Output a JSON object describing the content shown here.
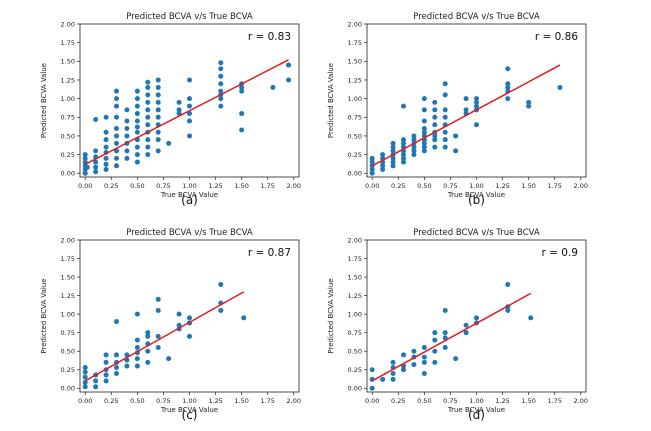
{
  "chart_data": [
    {
      "type": "scatter",
      "panel_label": "(a)",
      "title": "Predicted BCVA v/s True BCVA",
      "xlabel": "True BCVA Value",
      "ylabel": "Predicted BCVA Value",
      "xlim": [
        -0.05,
        2.05
      ],
      "ylim": [
        -0.05,
        2.0
      ],
      "xticks": [
        "0.00",
        "0.25",
        "0.50",
        "0.75",
        "1.00",
        "1.25",
        "1.50",
        "1.75",
        "2.00"
      ],
      "yticks": [
        "0.00",
        "0.25",
        "0.50",
        "0.75",
        "1.00",
        "1.25",
        "1.50",
        "1.75",
        "2.00"
      ],
      "annotation": "r = 0.83",
      "point_color": "#1f77b4",
      "line_color": "#e31a1c",
      "fit_line": {
        "x": [
          0.0,
          1.95
        ],
        "y": [
          0.12,
          1.52
        ]
      },
      "points": [
        [
          0.0,
          0.0
        ],
        [
          0.0,
          0.05
        ],
        [
          0.0,
          0.1
        ],
        [
          0.0,
          0.15
        ],
        [
          0.0,
          0.2
        ],
        [
          0.0,
          0.25
        ],
        [
          0.0,
          0.0
        ],
        [
          0.02,
          0.08
        ],
        [
          0.1,
          0.02
        ],
        [
          0.1,
          0.08
        ],
        [
          0.1,
          0.15
        ],
        [
          0.1,
          0.22
        ],
        [
          0.1,
          0.3
        ],
        [
          0.1,
          0.72
        ],
        [
          0.2,
          0.05
        ],
        [
          0.2,
          0.12
        ],
        [
          0.2,
          0.2
        ],
        [
          0.2,
          0.28
        ],
        [
          0.2,
          0.35
        ],
        [
          0.2,
          0.45
        ],
        [
          0.2,
          0.55
        ],
        [
          0.2,
          0.75
        ],
        [
          0.3,
          0.1
        ],
        [
          0.3,
          0.2
        ],
        [
          0.3,
          0.3
        ],
        [
          0.3,
          0.4
        ],
        [
          0.3,
          0.5
        ],
        [
          0.3,
          0.6
        ],
        [
          0.3,
          0.75
        ],
        [
          0.3,
          0.9
        ],
        [
          0.3,
          1.0
        ],
        [
          0.3,
          1.1
        ],
        [
          0.4,
          0.2
        ],
        [
          0.4,
          0.3
        ],
        [
          0.4,
          0.4
        ],
        [
          0.4,
          0.5
        ],
        [
          0.4,
          0.6
        ],
        [
          0.4,
          0.7
        ],
        [
          0.4,
          0.85
        ],
        [
          0.5,
          0.15
        ],
        [
          0.5,
          0.25
        ],
        [
          0.5,
          0.35
        ],
        [
          0.5,
          0.45
        ],
        [
          0.5,
          0.55
        ],
        [
          0.5,
          0.62
        ],
        [
          0.5,
          0.7
        ],
        [
          0.5,
          0.8
        ],
        [
          0.5,
          0.9
        ],
        [
          0.5,
          1.0
        ],
        [
          0.5,
          1.1
        ],
        [
          0.6,
          0.25
        ],
        [
          0.6,
          0.35
        ],
        [
          0.6,
          0.45
        ],
        [
          0.6,
          0.55
        ],
        [
          0.6,
          0.65
        ],
        [
          0.6,
          0.75
        ],
        [
          0.6,
          0.85
        ],
        [
          0.6,
          0.95
        ],
        [
          0.6,
          1.05
        ],
        [
          0.6,
          1.15
        ],
        [
          0.6,
          1.22
        ],
        [
          0.7,
          0.3
        ],
        [
          0.7,
          0.45
        ],
        [
          0.7,
          0.55
        ],
        [
          0.7,
          0.65
        ],
        [
          0.7,
          0.75
        ],
        [
          0.7,
          0.85
        ],
        [
          0.7,
          0.95
        ],
        [
          0.7,
          1.05
        ],
        [
          0.7,
          1.15
        ],
        [
          0.7,
          1.25
        ],
        [
          0.8,
          0.4
        ],
        [
          0.9,
          0.8
        ],
        [
          0.9,
          0.85
        ],
        [
          0.9,
          0.95
        ],
        [
          1.0,
          0.5
        ],
        [
          1.0,
          0.7
        ],
        [
          1.0,
          0.8
        ],
        [
          1.0,
          0.9
        ],
        [
          1.0,
          1.0
        ],
        [
          1.0,
          1.25
        ],
        [
          1.3,
          0.9
        ],
        [
          1.3,
          1.0
        ],
        [
          1.3,
          1.05
        ],
        [
          1.3,
          1.1
        ],
        [
          1.3,
          1.2
        ],
        [
          1.3,
          1.3
        ],
        [
          1.3,
          1.4
        ],
        [
          1.3,
          1.48
        ],
        [
          1.5,
          0.58
        ],
        [
          1.5,
          0.8
        ],
        [
          1.5,
          1.1
        ],
        [
          1.5,
          1.15
        ],
        [
          1.5,
          1.2
        ],
        [
          1.8,
          1.15
        ],
        [
          1.95,
          1.25
        ],
        [
          1.95,
          1.45
        ]
      ]
    },
    {
      "type": "scatter",
      "panel_label": "(b)",
      "title": "Predicted BCVA v/s True BCVA",
      "xlabel": "True BCVA Value",
      "ylabel": "Predicted BCVA Value",
      "xlim": [
        -0.05,
        2.05
      ],
      "ylim": [
        -0.05,
        2.0
      ],
      "xticks": [
        "0.00",
        "0.25",
        "0.50",
        "0.75",
        "1.00",
        "1.25",
        "1.50",
        "1.75",
        "2.00"
      ],
      "yticks": [
        "0.00",
        "0.25",
        "0.50",
        "0.75",
        "1.00",
        "1.25",
        "1.50",
        "1.75",
        "2.00"
      ],
      "annotation": "r = 0.86",
      "point_color": "#1f77b4",
      "line_color": "#e31a1c",
      "fit_line": {
        "x": [
          0.0,
          1.8
        ],
        "y": [
          0.1,
          1.45
        ]
      },
      "points": [
        [
          0.0,
          0.0
        ],
        [
          0.0,
          0.05
        ],
        [
          0.0,
          0.1
        ],
        [
          0.0,
          0.15
        ],
        [
          0.0,
          0.2
        ],
        [
          0.1,
          0.05
        ],
        [
          0.1,
          0.1
        ],
        [
          0.1,
          0.15
        ],
        [
          0.1,
          0.2
        ],
        [
          0.1,
          0.25
        ],
        [
          0.2,
          0.1
        ],
        [
          0.2,
          0.15
        ],
        [
          0.2,
          0.2
        ],
        [
          0.2,
          0.25
        ],
        [
          0.2,
          0.3
        ],
        [
          0.2,
          0.35
        ],
        [
          0.2,
          0.4
        ],
        [
          0.3,
          0.15
        ],
        [
          0.3,
          0.2
        ],
        [
          0.3,
          0.25
        ],
        [
          0.3,
          0.3
        ],
        [
          0.3,
          0.35
        ],
        [
          0.3,
          0.4
        ],
        [
          0.3,
          0.45
        ],
        [
          0.3,
          0.9
        ],
        [
          0.4,
          0.25
        ],
        [
          0.4,
          0.3
        ],
        [
          0.4,
          0.35
        ],
        [
          0.4,
          0.4
        ],
        [
          0.4,
          0.45
        ],
        [
          0.4,
          0.5
        ],
        [
          0.5,
          0.3
        ],
        [
          0.5,
          0.35
        ],
        [
          0.5,
          0.4
        ],
        [
          0.5,
          0.45
        ],
        [
          0.5,
          0.5
        ],
        [
          0.5,
          0.55
        ],
        [
          0.5,
          0.6
        ],
        [
          0.5,
          0.7
        ],
        [
          0.5,
          0.85
        ],
        [
          0.5,
          1.0
        ],
        [
          0.6,
          0.35
        ],
        [
          0.6,
          0.45
        ],
        [
          0.6,
          0.5
        ],
        [
          0.6,
          0.55
        ],
        [
          0.6,
          0.65
        ],
        [
          0.6,
          0.75
        ],
        [
          0.6,
          0.85
        ],
        [
          0.6,
          0.95
        ],
        [
          0.7,
          0.35
        ],
        [
          0.7,
          0.45
        ],
        [
          0.7,
          0.55
        ],
        [
          0.7,
          0.65
        ],
        [
          0.7,
          0.75
        ],
        [
          0.7,
          0.85
        ],
        [
          0.7,
          1.05
        ],
        [
          0.7,
          1.2
        ],
        [
          0.8,
          0.3
        ],
        [
          0.8,
          0.5
        ],
        [
          0.9,
          0.8
        ],
        [
          0.9,
          0.85
        ],
        [
          0.9,
          1.0
        ],
        [
          1.0,
          0.65
        ],
        [
          1.0,
          0.85
        ],
        [
          1.0,
          0.9
        ],
        [
          1.0,
          0.95
        ],
        [
          1.0,
          1.0
        ],
        [
          1.3,
          1.0
        ],
        [
          1.3,
          1.1
        ],
        [
          1.3,
          1.15
        ],
        [
          1.3,
          1.2
        ],
        [
          1.3,
          1.4
        ],
        [
          1.5,
          0.9
        ],
        [
          1.5,
          0.95
        ],
        [
          1.8,
          1.15
        ]
      ]
    },
    {
      "type": "scatter",
      "panel_label": "(c)",
      "title": "Predicted BCVA v/s True BCVA",
      "xlabel": "True BCVA Value",
      "ylabel": "Predicted BCVA Value",
      "xlim": [
        -0.05,
        2.05
      ],
      "ylim": [
        -0.05,
        2.0
      ],
      "xticks": [
        "0.00",
        "0.25",
        "0.50",
        "0.75",
        "1.00",
        "1.25",
        "1.50",
        "1.75",
        "2.00"
      ],
      "yticks": [
        "0.00",
        "0.25",
        "0.50",
        "0.75",
        "1.00",
        "1.25",
        "1.50",
        "1.75",
        "2.00"
      ],
      "annotation": "r = 0.87",
      "point_color": "#1f77b4",
      "line_color": "#e31a1c",
      "fit_line": {
        "x": [
          0.0,
          1.52
        ],
        "y": [
          0.1,
          1.3
        ]
      },
      "points": [
        [
          0.0,
          0.02
        ],
        [
          0.0,
          0.08
        ],
        [
          0.0,
          0.15
        ],
        [
          0.0,
          0.22
        ],
        [
          0.0,
          0.28
        ],
        [
          0.1,
          0.02
        ],
        [
          0.1,
          0.1
        ],
        [
          0.1,
          0.18
        ],
        [
          0.2,
          0.1
        ],
        [
          0.2,
          0.18
        ],
        [
          0.2,
          0.25
        ],
        [
          0.2,
          0.35
        ],
        [
          0.2,
          0.45
        ],
        [
          0.3,
          0.2
        ],
        [
          0.3,
          0.28
        ],
        [
          0.3,
          0.35
        ],
        [
          0.3,
          0.45
        ],
        [
          0.3,
          0.9
        ],
        [
          0.4,
          0.3
        ],
        [
          0.4,
          0.38
        ],
        [
          0.4,
          0.45
        ],
        [
          0.5,
          0.3
        ],
        [
          0.5,
          0.4
        ],
        [
          0.5,
          0.48
        ],
        [
          0.5,
          0.55
        ],
        [
          0.5,
          0.65
        ],
        [
          0.5,
          1.0
        ],
        [
          0.6,
          0.35
        ],
        [
          0.6,
          0.5
        ],
        [
          0.6,
          0.6
        ],
        [
          0.6,
          0.7
        ],
        [
          0.6,
          0.75
        ],
        [
          0.7,
          0.55
        ],
        [
          0.7,
          0.7
        ],
        [
          0.7,
          1.05
        ],
        [
          0.7,
          1.2
        ],
        [
          0.8,
          0.4
        ],
        [
          0.9,
          0.8
        ],
        [
          0.9,
          0.85
        ],
        [
          0.9,
          1.0
        ],
        [
          1.0,
          0.7
        ],
        [
          1.0,
          0.88
        ],
        [
          1.0,
          0.95
        ],
        [
          1.3,
          1.05
        ],
        [
          1.3,
          1.15
        ],
        [
          1.3,
          1.4
        ],
        [
          1.52,
          0.95
        ]
      ]
    },
    {
      "type": "scatter",
      "panel_label": "(d)",
      "title": "Predicted BCVA v/s True BCVA",
      "xlabel": "True BCVA Value",
      "ylabel": "Predicted BCVA Value",
      "xlim": [
        -0.05,
        2.05
      ],
      "ylim": [
        -0.05,
        2.0
      ],
      "xticks": [
        "0.00",
        "0.25",
        "0.50",
        "0.75",
        "1.00",
        "1.25",
        "1.50",
        "1.75",
        "2.00"
      ],
      "yticks": [
        "0.00",
        "0.25",
        "0.50",
        "0.75",
        "1.00",
        "1.25",
        "1.50",
        "1.75",
        "2.00"
      ],
      "annotation": "r = 0.9",
      "point_color": "#1f77b4",
      "line_color": "#e31a1c",
      "fit_line": {
        "x": [
          0.0,
          1.52
        ],
        "y": [
          0.1,
          1.28
        ]
      },
      "points": [
        [
          0.0,
          0.0
        ],
        [
          0.0,
          0.12
        ],
        [
          0.0,
          0.25
        ],
        [
          0.1,
          0.12
        ],
        [
          0.2,
          0.12
        ],
        [
          0.2,
          0.2
        ],
        [
          0.2,
          0.28
        ],
        [
          0.2,
          0.35
        ],
        [
          0.3,
          0.25
        ],
        [
          0.3,
          0.3
        ],
        [
          0.3,
          0.45
        ],
        [
          0.4,
          0.32
        ],
        [
          0.4,
          0.42
        ],
        [
          0.4,
          0.5
        ],
        [
          0.5,
          0.2
        ],
        [
          0.5,
          0.35
        ],
        [
          0.5,
          0.42
        ],
        [
          0.5,
          0.55
        ],
        [
          0.6,
          0.35
        ],
        [
          0.6,
          0.5
        ],
        [
          0.6,
          0.65
        ],
        [
          0.6,
          0.75
        ],
        [
          0.7,
          0.55
        ],
        [
          0.7,
          0.68
        ],
        [
          0.7,
          0.75
        ],
        [
          0.7,
          1.05
        ],
        [
          0.8,
          0.4
        ],
        [
          0.9,
          0.75
        ],
        [
          0.9,
          0.85
        ],
        [
          1.0,
          0.88
        ],
        [
          1.0,
          0.95
        ],
        [
          1.3,
          1.05
        ],
        [
          1.3,
          1.1
        ],
        [
          1.3,
          1.4
        ],
        [
          1.52,
          0.95
        ]
      ]
    }
  ]
}
